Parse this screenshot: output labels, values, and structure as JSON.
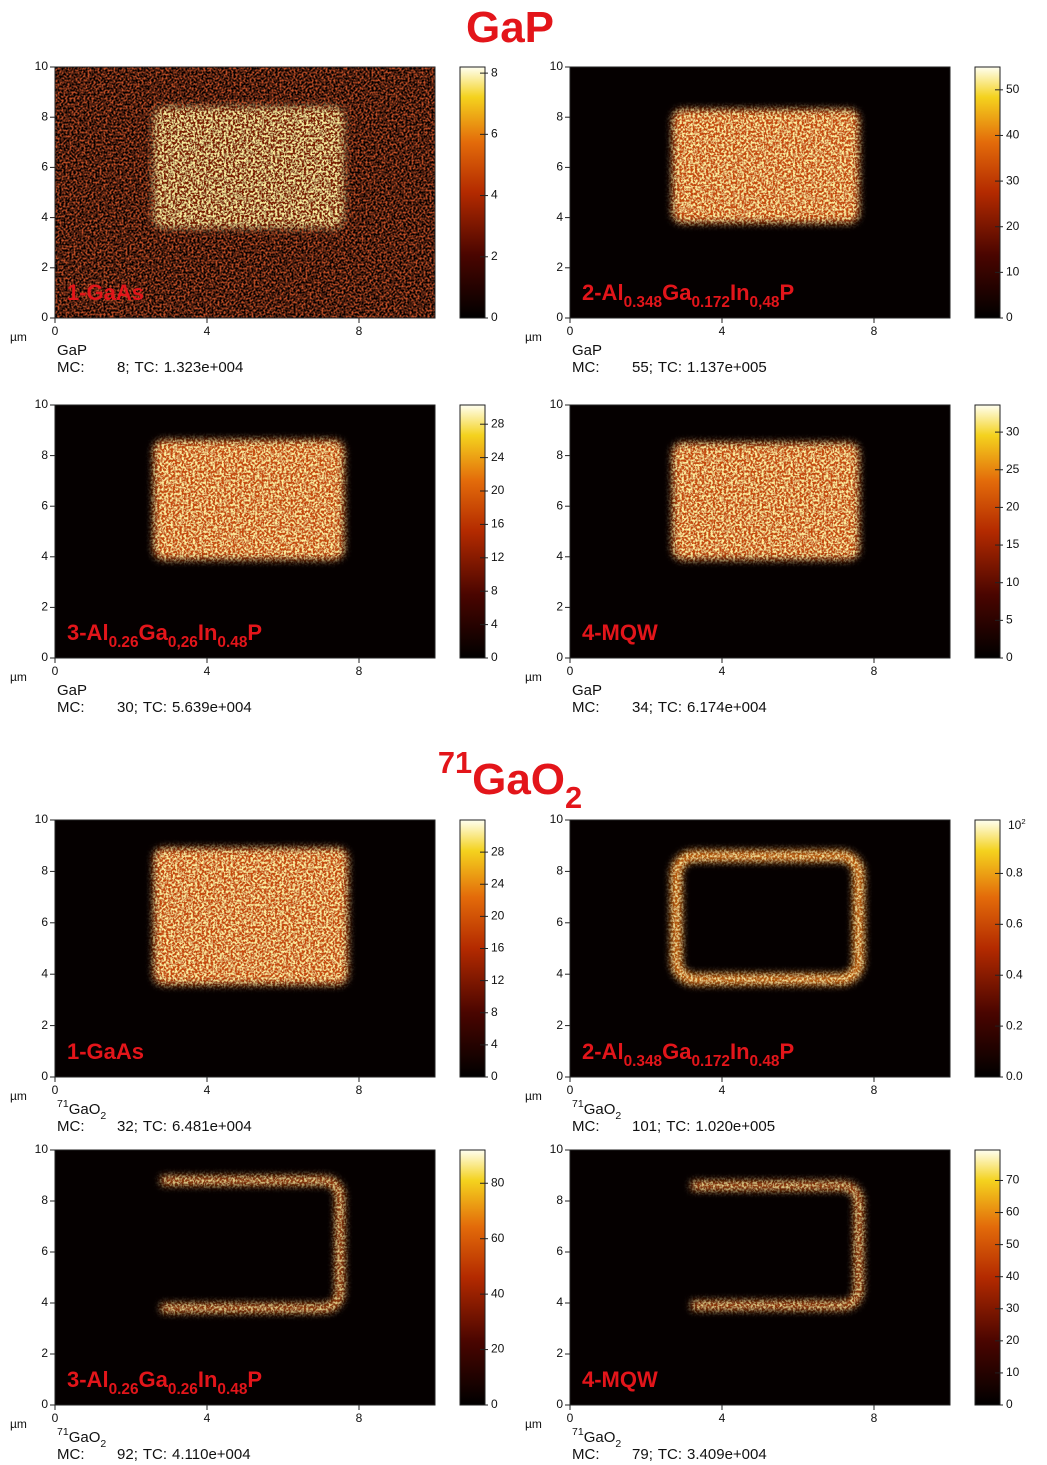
{
  "axes": {
    "unit": "µm",
    "xlim": [
      0,
      10
    ],
    "ylim": [
      0,
      10
    ],
    "xticks": [
      0,
      4,
      8
    ],
    "yticks": [
      0,
      2,
      4,
      6,
      8,
      10
    ]
  },
  "stats": {
    "mc": "MC:",
    "sep": ";",
    "tc": "TC:"
  },
  "sections": [
    {
      "title": [
        {
          "text": "GaP"
        }
      ],
      "panels": [
        {
          "label": [
            {
              "text": "1-GaAs"
            }
          ],
          "species": [
            {
              "text": "GaP"
            }
          ],
          "mc": 8,
          "tc": "1.323e+004",
          "clim": [
            0,
            8.2
          ],
          "cticks": [
            0,
            2,
            4,
            6,
            8
          ]
        },
        {
          "label": [
            {
              "text": "2-Al"
            },
            {
              "text": "0.348",
              "sub": true
            },
            {
              "text": "Ga"
            },
            {
              "text": "0.172",
              "sub": true
            },
            {
              "text": "In"
            },
            {
              "text": "0,48",
              "sub": true
            },
            {
              "text": "P"
            }
          ],
          "species": [
            {
              "text": "GaP"
            }
          ],
          "mc": 55,
          "tc": "1.137e+005",
          "clim": [
            0,
            55
          ],
          "cticks": [
            0,
            10,
            20,
            30,
            40,
            50
          ]
        },
        {
          "label": [
            {
              "text": "3-Al"
            },
            {
              "text": "0.26",
              "sub": true
            },
            {
              "text": "Ga"
            },
            {
              "text": "0,26",
              "sub": true
            },
            {
              "text": "In"
            },
            {
              "text": "0.48",
              "sub": true
            },
            {
              "text": "P"
            }
          ],
          "species": [
            {
              "text": "GaP"
            }
          ],
          "mc": 30,
          "tc": "5.639e+004",
          "clim": [
            0,
            30.3
          ],
          "cticks": [
            0,
            4,
            8,
            12,
            16,
            20,
            24,
            28
          ]
        },
        {
          "label": [
            {
              "text": "4-MQW"
            }
          ],
          "species": [
            {
              "text": "GaP"
            }
          ],
          "mc": 34,
          "tc": "6.174e+004",
          "clim": [
            0,
            33.6
          ],
          "cticks": [
            0,
            5,
            10,
            15,
            20,
            25,
            30
          ]
        }
      ]
    },
    {
      "title": [
        {
          "text": "71",
          "sup": true
        },
        {
          "text": "GaO"
        },
        {
          "text": "2",
          "sub": true
        }
      ],
      "panels": [
        {
          "label": [
            {
              "text": "1-GaAs"
            }
          ],
          "species": [
            {
              "text": "71",
              "sup": true
            },
            {
              "text": "GaO"
            },
            {
              "text": "2",
              "sub": true
            }
          ],
          "mc": 32,
          "tc": "6.481e+004",
          "clim": [
            0,
            32
          ],
          "cticks": [
            0,
            4,
            8,
            12,
            16,
            20,
            24,
            28
          ]
        },
        {
          "label": [
            {
              "text": "2-Al"
            },
            {
              "text": "0.348",
              "sub": true
            },
            {
              "text": "Ga"
            },
            {
              "text": "0.172",
              "sub": true
            },
            {
              "text": "In"
            },
            {
              "text": "0.48",
              "sub": true
            },
            {
              "text": "P"
            }
          ],
          "species": [
            {
              "text": "71",
              "sup": true
            },
            {
              "text": "GaO"
            },
            {
              "text": "2",
              "sub": true
            }
          ],
          "mc": 101,
          "tc": "1.020e+005",
          "clim": [
            0,
            1.01
          ],
          "cticks": [
            {
              "value": 0,
              "label": "0.0"
            },
            0.2,
            0.4,
            0.6,
            0.8
          ],
          "cexponent": [
            {
              "text": "10"
            },
            {
              "text": "2",
              "sup": true
            }
          ]
        },
        {
          "label": [
            {
              "text": "3-Al"
            },
            {
              "text": "0.26",
              "sub": true
            },
            {
              "text": "Ga"
            },
            {
              "text": "0.26",
              "sub": true
            },
            {
              "text": "In"
            },
            {
              "text": "0.48",
              "sub": true
            },
            {
              "text": "P"
            }
          ],
          "species": [
            {
              "text": "71",
              "sup": true
            },
            {
              "text": "GaO"
            },
            {
              "text": "2",
              "sub": true
            }
          ],
          "mc": 92,
          "tc": "4.110e+004",
          "clim": [
            0,
            92
          ],
          "cticks": [
            0,
            20,
            40,
            60,
            80
          ]
        },
        {
          "label": [
            {
              "text": "4-MQW"
            }
          ],
          "species": [
            {
              "text": "71",
              "sup": true
            },
            {
              "text": "GaO"
            },
            {
              "text": "2",
              "sub": true
            }
          ],
          "mc": 79,
          "tc": "3.409e+004",
          "clim": [
            0,
            79.5
          ],
          "cticks": [
            0,
            10,
            20,
            30,
            40,
            50,
            60,
            70
          ]
        }
      ]
    }
  ]
}
